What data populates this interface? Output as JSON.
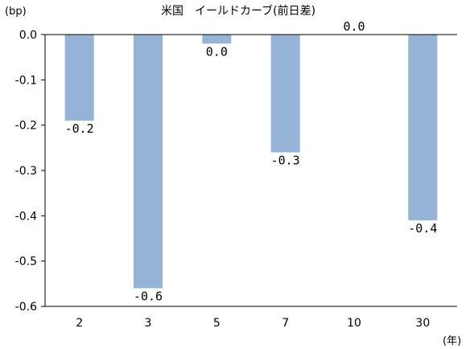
{
  "chart_data": {
    "type": "bar",
    "title": "米国　イールドカーブ(前日差)",
    "yunit_label": "(bp)",
    "xunit_label": "(年)",
    "categories": [
      "2",
      "3",
      "5",
      "7",
      "10",
      "30"
    ],
    "values": [
      -0.19,
      -0.56,
      -0.02,
      -0.26,
      0.0,
      -0.41
    ],
    "data_labels": [
      "-0.2",
      "-0.6",
      "0.0",
      "-0.3",
      "0.0",
      "-0.4"
    ],
    "ylim": [
      -0.6,
      0.0
    ],
    "yticks": [
      0.0,
      -0.1,
      -0.2,
      -0.3,
      -0.4,
      -0.5,
      -0.6
    ],
    "ytick_labels": [
      "0.0",
      "-0.1",
      "-0.2",
      "-0.3",
      "-0.4",
      "-0.5",
      "-0.6"
    ],
    "bar_color": "#95B3D7",
    "grid": false,
    "legend": "none"
  }
}
